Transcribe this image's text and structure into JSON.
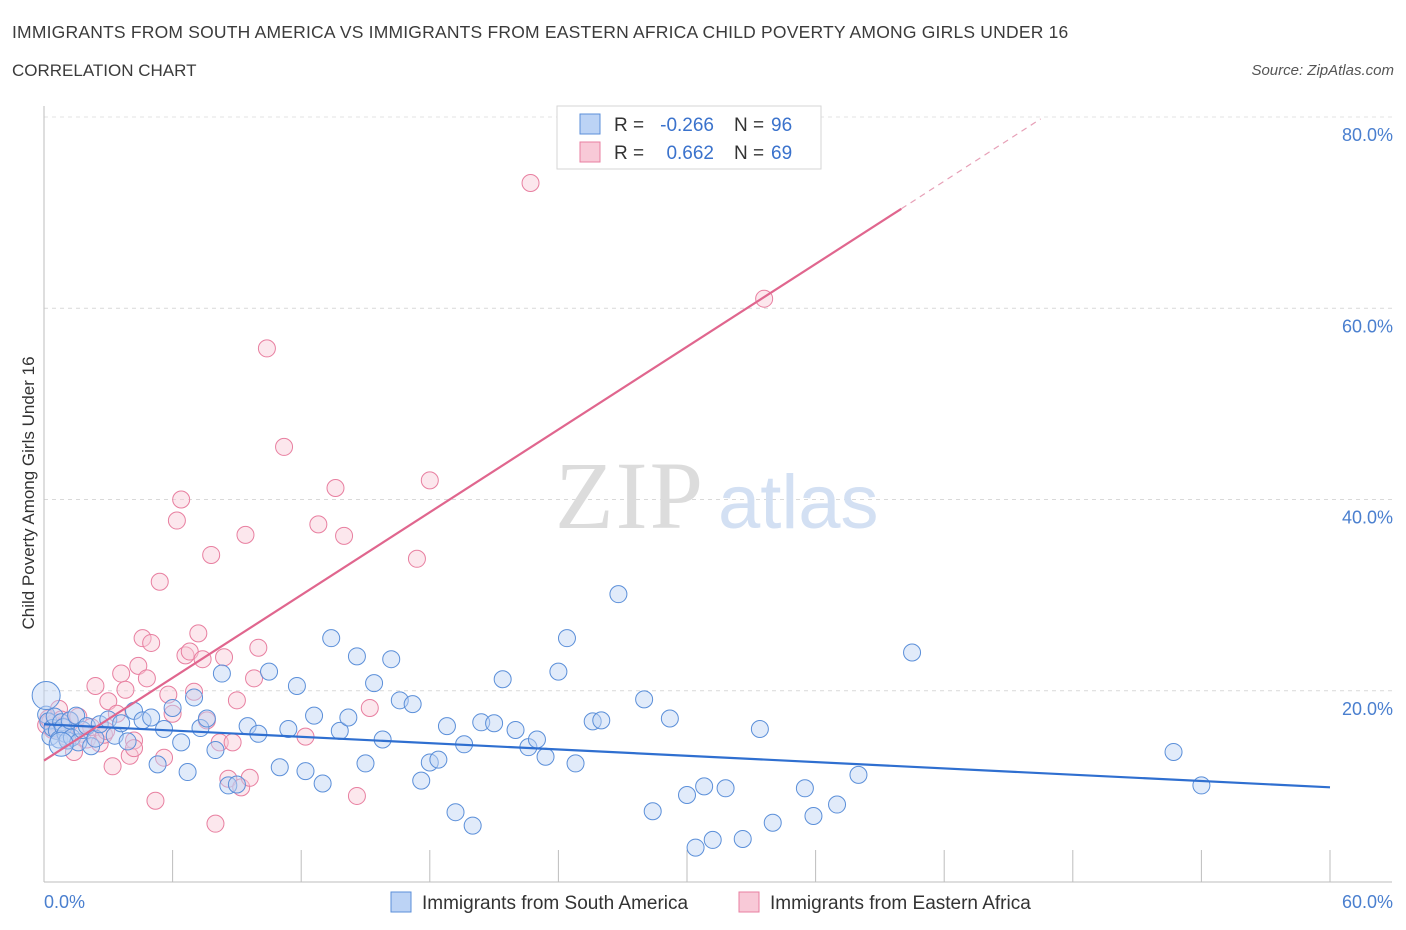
{
  "title": "IMMIGRANTS FROM SOUTH AMERICA VS IMMIGRANTS FROM EASTERN AFRICA CHILD POVERTY AMONG GIRLS UNDER 16",
  "subtitle": "CORRELATION CHART",
  "source": "Source: ZipAtlas.com",
  "watermark": {
    "zip": "ZIP",
    "atlas": "atlas"
  },
  "legend_top": {
    "r_label": "R =",
    "n_label": "N =",
    "rows": [
      {
        "r": "-0.266",
        "n": "96",
        "color": "#5b8fd9"
      },
      {
        "r": "0.662",
        "n": "69",
        "color": "#e87fa0"
      }
    ]
  },
  "chart_data": {
    "type": "scatter",
    "ylabel": "Child Poverty Among Girls Under 16",
    "x_tick_labels": [
      "0.0%",
      "60.0%"
    ],
    "y_tick_labels": [
      "20.0%",
      "40.0%",
      "60.0%",
      "80.0%"
    ],
    "xlim": [
      0,
      60
    ],
    "ylim": [
      0,
      80
    ],
    "y_ticks": [
      20,
      40,
      60,
      80
    ],
    "grid": "horizontal dashed",
    "legend_position": "top-center",
    "series": [
      {
        "name": "Immigrants from South America",
        "color": "#5b8fd9",
        "trend": {
          "x": [
            0,
            60
          ],
          "y": [
            16.5,
            9.9
          ]
        },
        "points": [
          [
            0.1,
            17.5
          ],
          [
            0.2,
            16.8
          ],
          [
            0.3,
            15.2
          ],
          [
            0.4,
            16.1
          ],
          [
            0.5,
            17.3
          ],
          [
            0.6,
            15.8
          ],
          [
            0.7,
            14.9
          ],
          [
            0.8,
            16.7
          ],
          [
            0.9,
            16.2
          ],
          [
            1.0,
            15.5
          ],
          [
            1.1,
            14.8
          ],
          [
            1.2,
            16.9
          ],
          [
            1.3,
            15.1
          ],
          [
            1.5,
            17.4
          ],
          [
            1.6,
            14.6
          ],
          [
            1.8,
            15.9
          ],
          [
            2.0,
            16.3
          ],
          [
            2.2,
            14.2
          ],
          [
            2.4,
            15.0
          ],
          [
            2.6,
            16.5
          ],
          [
            3.0,
            17.0
          ],
          [
            3.3,
            15.3
          ],
          [
            3.6,
            16.6
          ],
          [
            3.9,
            14.7
          ],
          [
            4.2,
            17.9
          ],
          [
            4.6,
            16.9
          ],
          [
            5.0,
            17.2
          ],
          [
            5.3,
            12.3
          ],
          [
            5.6,
            16.0
          ],
          [
            6.0,
            18.2
          ],
          [
            6.4,
            14.6
          ],
          [
            6.7,
            11.5
          ],
          [
            7.0,
            19.3
          ],
          [
            7.3,
            16.1
          ],
          [
            7.6,
            17.1
          ],
          [
            8.0,
            13.8
          ],
          [
            8.3,
            21.8
          ],
          [
            8.6,
            10.1
          ],
          [
            9.0,
            10.2
          ],
          [
            9.5,
            16.3
          ],
          [
            10.0,
            15.5
          ],
          [
            10.5,
            22.0
          ],
          [
            11.0,
            12.0
          ],
          [
            11.4,
            16.0
          ],
          [
            11.8,
            20.5
          ],
          [
            12.2,
            11.6
          ],
          [
            12.6,
            17.4
          ],
          [
            13.0,
            10.3
          ],
          [
            13.4,
            25.5
          ],
          [
            13.8,
            15.8
          ],
          [
            14.2,
            17.2
          ],
          [
            14.6,
            23.6
          ],
          [
            15.0,
            12.4
          ],
          [
            15.4,
            20.8
          ],
          [
            15.8,
            14.9
          ],
          [
            16.2,
            23.3
          ],
          [
            16.6,
            19.0
          ],
          [
            17.2,
            18.6
          ],
          [
            17.6,
            10.6
          ],
          [
            18.0,
            12.5
          ],
          [
            18.4,
            12.8
          ],
          [
            18.8,
            16.3
          ],
          [
            19.2,
            7.3
          ],
          [
            19.6,
            14.4
          ],
          [
            20.0,
            5.9
          ],
          [
            20.4,
            16.7
          ],
          [
            21.0,
            16.6
          ],
          [
            21.4,
            21.2
          ],
          [
            22.0,
            15.9
          ],
          [
            22.6,
            14.1
          ],
          [
            23.0,
            14.9
          ],
          [
            23.4,
            13.1
          ],
          [
            24.0,
            22.0
          ],
          [
            24.4,
            25.5
          ],
          [
            24.8,
            12.4
          ],
          [
            25.6,
            16.8
          ],
          [
            26.0,
            16.9
          ],
          [
            26.8,
            30.1
          ],
          [
            28.0,
            19.1
          ],
          [
            28.4,
            7.4
          ],
          [
            29.2,
            17.1
          ],
          [
            30.0,
            9.1
          ],
          [
            30.4,
            3.6
          ],
          [
            30.8,
            10.0
          ],
          [
            31.2,
            4.4
          ],
          [
            31.8,
            9.8
          ],
          [
            32.6,
            4.5
          ],
          [
            33.4,
            16.0
          ],
          [
            34.0,
            6.2
          ],
          [
            35.5,
            9.8
          ],
          [
            35.9,
            6.9
          ],
          [
            37.0,
            8.1
          ],
          [
            38.0,
            11.2
          ],
          [
            40.5,
            24.0
          ],
          [
            52.7,
            13.6
          ],
          [
            54.0,
            10.1
          ]
        ]
      },
      {
        "name": "Immigrants from Eastern Africa",
        "color": "#e87fa0",
        "trend": {
          "x": [
            0,
            40
          ],
          "y": [
            12.7,
            70.4
          ]
        },
        "trend_dashed": {
          "x": [
            40,
            46.5
          ],
          "y": [
            70.4,
            79.8
          ]
        },
        "points": [
          [
            0.1,
            16.4
          ],
          [
            0.2,
            17.1
          ],
          [
            0.3,
            16.8
          ],
          [
            0.4,
            15.9
          ],
          [
            0.5,
            16.7
          ],
          [
            0.6,
            16.0
          ],
          [
            0.7,
            18.1
          ],
          [
            0.8,
            17.0
          ],
          [
            0.9,
            16.3
          ],
          [
            1.0,
            15.2
          ],
          [
            1.2,
            16.9
          ],
          [
            1.4,
            13.6
          ],
          [
            1.6,
            17.3
          ],
          [
            1.8,
            15.5
          ],
          [
            2.0,
            14.9
          ],
          [
            2.2,
            16.2
          ],
          [
            2.4,
            20.5
          ],
          [
            2.6,
            14.5
          ],
          [
            2.8,
            15.4
          ],
          [
            3.0,
            18.9
          ],
          [
            3.2,
            12.1
          ],
          [
            3.4,
            17.6
          ],
          [
            3.6,
            21.8
          ],
          [
            3.8,
            20.1
          ],
          [
            4.0,
            13.2
          ],
          [
            4.2,
            14.8
          ],
          [
            4.4,
            22.6
          ],
          [
            4.6,
            25.5
          ],
          [
            4.8,
            21.3
          ],
          [
            5.0,
            25.0
          ],
          [
            5.2,
            8.5
          ],
          [
            5.4,
            31.4
          ],
          [
            5.6,
            13.0
          ],
          [
            5.8,
            19.6
          ],
          [
            6.0,
            17.6
          ],
          [
            6.2,
            37.8
          ],
          [
            6.4,
            40.0
          ],
          [
            6.6,
            23.7
          ],
          [
            6.8,
            24.1
          ],
          [
            7.0,
            19.9
          ],
          [
            7.2,
            26.0
          ],
          [
            7.4,
            23.3
          ],
          [
            7.6,
            16.9
          ],
          [
            7.8,
            34.2
          ],
          [
            8.0,
            6.1
          ],
          [
            8.2,
            14.6
          ],
          [
            8.4,
            23.5
          ],
          [
            8.6,
            10.8
          ],
          [
            8.8,
            14.6
          ],
          [
            9.0,
            19.0
          ],
          [
            9.2,
            9.9
          ],
          [
            9.4,
            36.3
          ],
          [
            9.6,
            10.9
          ],
          [
            9.8,
            21.3
          ],
          [
            10.0,
            24.5
          ],
          [
            10.4,
            55.8
          ],
          [
            11.2,
            45.5
          ],
          [
            12.2,
            15.2
          ],
          [
            12.8,
            37.4
          ],
          [
            13.6,
            41.2
          ],
          [
            14.0,
            36.2
          ],
          [
            14.6,
            9.0
          ],
          [
            15.2,
            18.2
          ],
          [
            17.4,
            33.8
          ],
          [
            18.0,
            42.0
          ],
          [
            22.7,
            73.1
          ],
          [
            33.6,
            61.0
          ],
          [
            4.2,
            14.0
          ],
          [
            2.9,
            15.8
          ]
        ]
      }
    ]
  },
  "bottom_legend": [
    {
      "label": "Immigrants from South America",
      "color": "#5b8fd9"
    },
    {
      "label": "Immigrants from Eastern Africa",
      "color": "#e87fa0"
    }
  ]
}
